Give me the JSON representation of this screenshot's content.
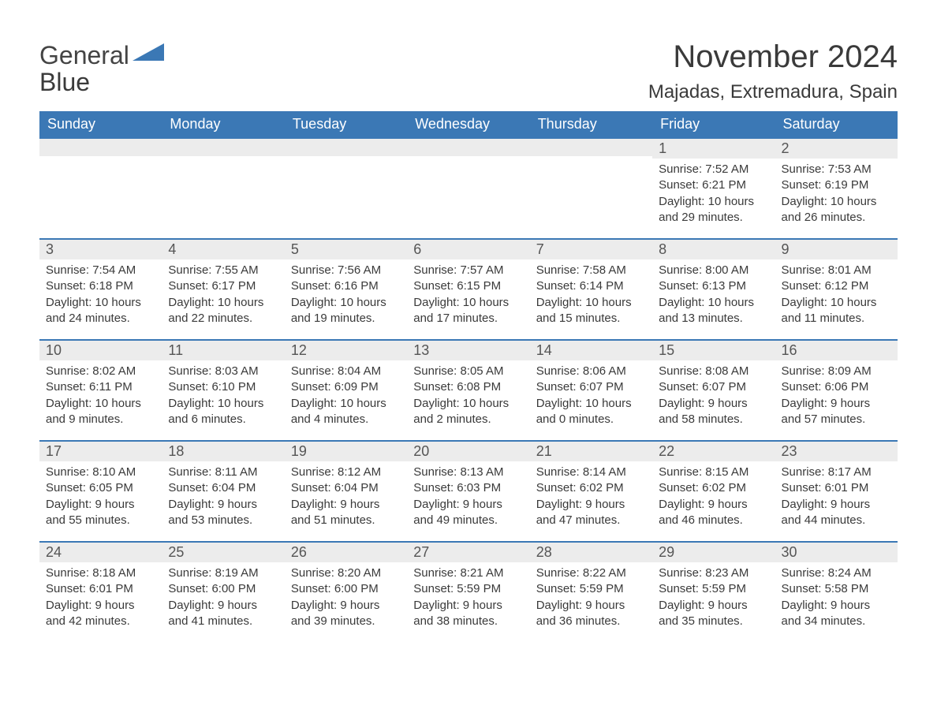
{
  "logo": {
    "general": "General",
    "blue": "Blue",
    "triangle_color": "#3b78b5"
  },
  "header": {
    "month_title": "November 2024",
    "location": "Majadas, Extremadura, Spain"
  },
  "style": {
    "header_bg": "#3b78b5",
    "header_text": "#ffffff",
    "daynum_bg": "#ececec",
    "row_border": "#3b78b5",
    "body_text": "#3a3a3a",
    "page_bg": "#ffffff",
    "title_fontsize": 40,
    "location_fontsize": 24,
    "th_fontsize": 18,
    "cell_fontsize": 15
  },
  "weekdays": [
    "Sunday",
    "Monday",
    "Tuesday",
    "Wednesday",
    "Thursday",
    "Friday",
    "Saturday"
  ],
  "weeks": [
    [
      null,
      null,
      null,
      null,
      null,
      {
        "n": "1",
        "sunrise": "7:52 AM",
        "sunset": "6:21 PM",
        "daylight": "10 hours and 29 minutes."
      },
      {
        "n": "2",
        "sunrise": "7:53 AM",
        "sunset": "6:19 PM",
        "daylight": "10 hours and 26 minutes."
      }
    ],
    [
      {
        "n": "3",
        "sunrise": "7:54 AM",
        "sunset": "6:18 PM",
        "daylight": "10 hours and 24 minutes."
      },
      {
        "n": "4",
        "sunrise": "7:55 AM",
        "sunset": "6:17 PM",
        "daylight": "10 hours and 22 minutes."
      },
      {
        "n": "5",
        "sunrise": "7:56 AM",
        "sunset": "6:16 PM",
        "daylight": "10 hours and 19 minutes."
      },
      {
        "n": "6",
        "sunrise": "7:57 AM",
        "sunset": "6:15 PM",
        "daylight": "10 hours and 17 minutes."
      },
      {
        "n": "7",
        "sunrise": "7:58 AM",
        "sunset": "6:14 PM",
        "daylight": "10 hours and 15 minutes."
      },
      {
        "n": "8",
        "sunrise": "8:00 AM",
        "sunset": "6:13 PM",
        "daylight": "10 hours and 13 minutes."
      },
      {
        "n": "9",
        "sunrise": "8:01 AM",
        "sunset": "6:12 PM",
        "daylight": "10 hours and 11 minutes."
      }
    ],
    [
      {
        "n": "10",
        "sunrise": "8:02 AM",
        "sunset": "6:11 PM",
        "daylight": "10 hours and 9 minutes."
      },
      {
        "n": "11",
        "sunrise": "8:03 AM",
        "sunset": "6:10 PM",
        "daylight": "10 hours and 6 minutes."
      },
      {
        "n": "12",
        "sunrise": "8:04 AM",
        "sunset": "6:09 PM",
        "daylight": "10 hours and 4 minutes."
      },
      {
        "n": "13",
        "sunrise": "8:05 AM",
        "sunset": "6:08 PM",
        "daylight": "10 hours and 2 minutes."
      },
      {
        "n": "14",
        "sunrise": "8:06 AM",
        "sunset": "6:07 PM",
        "daylight": "10 hours and 0 minutes."
      },
      {
        "n": "15",
        "sunrise": "8:08 AM",
        "sunset": "6:07 PM",
        "daylight": "9 hours and 58 minutes."
      },
      {
        "n": "16",
        "sunrise": "8:09 AM",
        "sunset": "6:06 PM",
        "daylight": "9 hours and 57 minutes."
      }
    ],
    [
      {
        "n": "17",
        "sunrise": "8:10 AM",
        "sunset": "6:05 PM",
        "daylight": "9 hours and 55 minutes."
      },
      {
        "n": "18",
        "sunrise": "8:11 AM",
        "sunset": "6:04 PM",
        "daylight": "9 hours and 53 minutes."
      },
      {
        "n": "19",
        "sunrise": "8:12 AM",
        "sunset": "6:04 PM",
        "daylight": "9 hours and 51 minutes."
      },
      {
        "n": "20",
        "sunrise": "8:13 AM",
        "sunset": "6:03 PM",
        "daylight": "9 hours and 49 minutes."
      },
      {
        "n": "21",
        "sunrise": "8:14 AM",
        "sunset": "6:02 PM",
        "daylight": "9 hours and 47 minutes."
      },
      {
        "n": "22",
        "sunrise": "8:15 AM",
        "sunset": "6:02 PM",
        "daylight": "9 hours and 46 minutes."
      },
      {
        "n": "23",
        "sunrise": "8:17 AM",
        "sunset": "6:01 PM",
        "daylight": "9 hours and 44 minutes."
      }
    ],
    [
      {
        "n": "24",
        "sunrise": "8:18 AM",
        "sunset": "6:01 PM",
        "daylight": "9 hours and 42 minutes."
      },
      {
        "n": "25",
        "sunrise": "8:19 AM",
        "sunset": "6:00 PM",
        "daylight": "9 hours and 41 minutes."
      },
      {
        "n": "26",
        "sunrise": "8:20 AM",
        "sunset": "6:00 PM",
        "daylight": "9 hours and 39 minutes."
      },
      {
        "n": "27",
        "sunrise": "8:21 AM",
        "sunset": "5:59 PM",
        "daylight": "9 hours and 38 minutes."
      },
      {
        "n": "28",
        "sunrise": "8:22 AM",
        "sunset": "5:59 PM",
        "daylight": "9 hours and 36 minutes."
      },
      {
        "n": "29",
        "sunrise": "8:23 AM",
        "sunset": "5:59 PM",
        "daylight": "9 hours and 35 minutes."
      },
      {
        "n": "30",
        "sunrise": "8:24 AM",
        "sunset": "5:58 PM",
        "daylight": "9 hours and 34 minutes."
      }
    ]
  ],
  "labels": {
    "sunrise": "Sunrise: ",
    "sunset": "Sunset: ",
    "daylight": "Daylight: "
  }
}
